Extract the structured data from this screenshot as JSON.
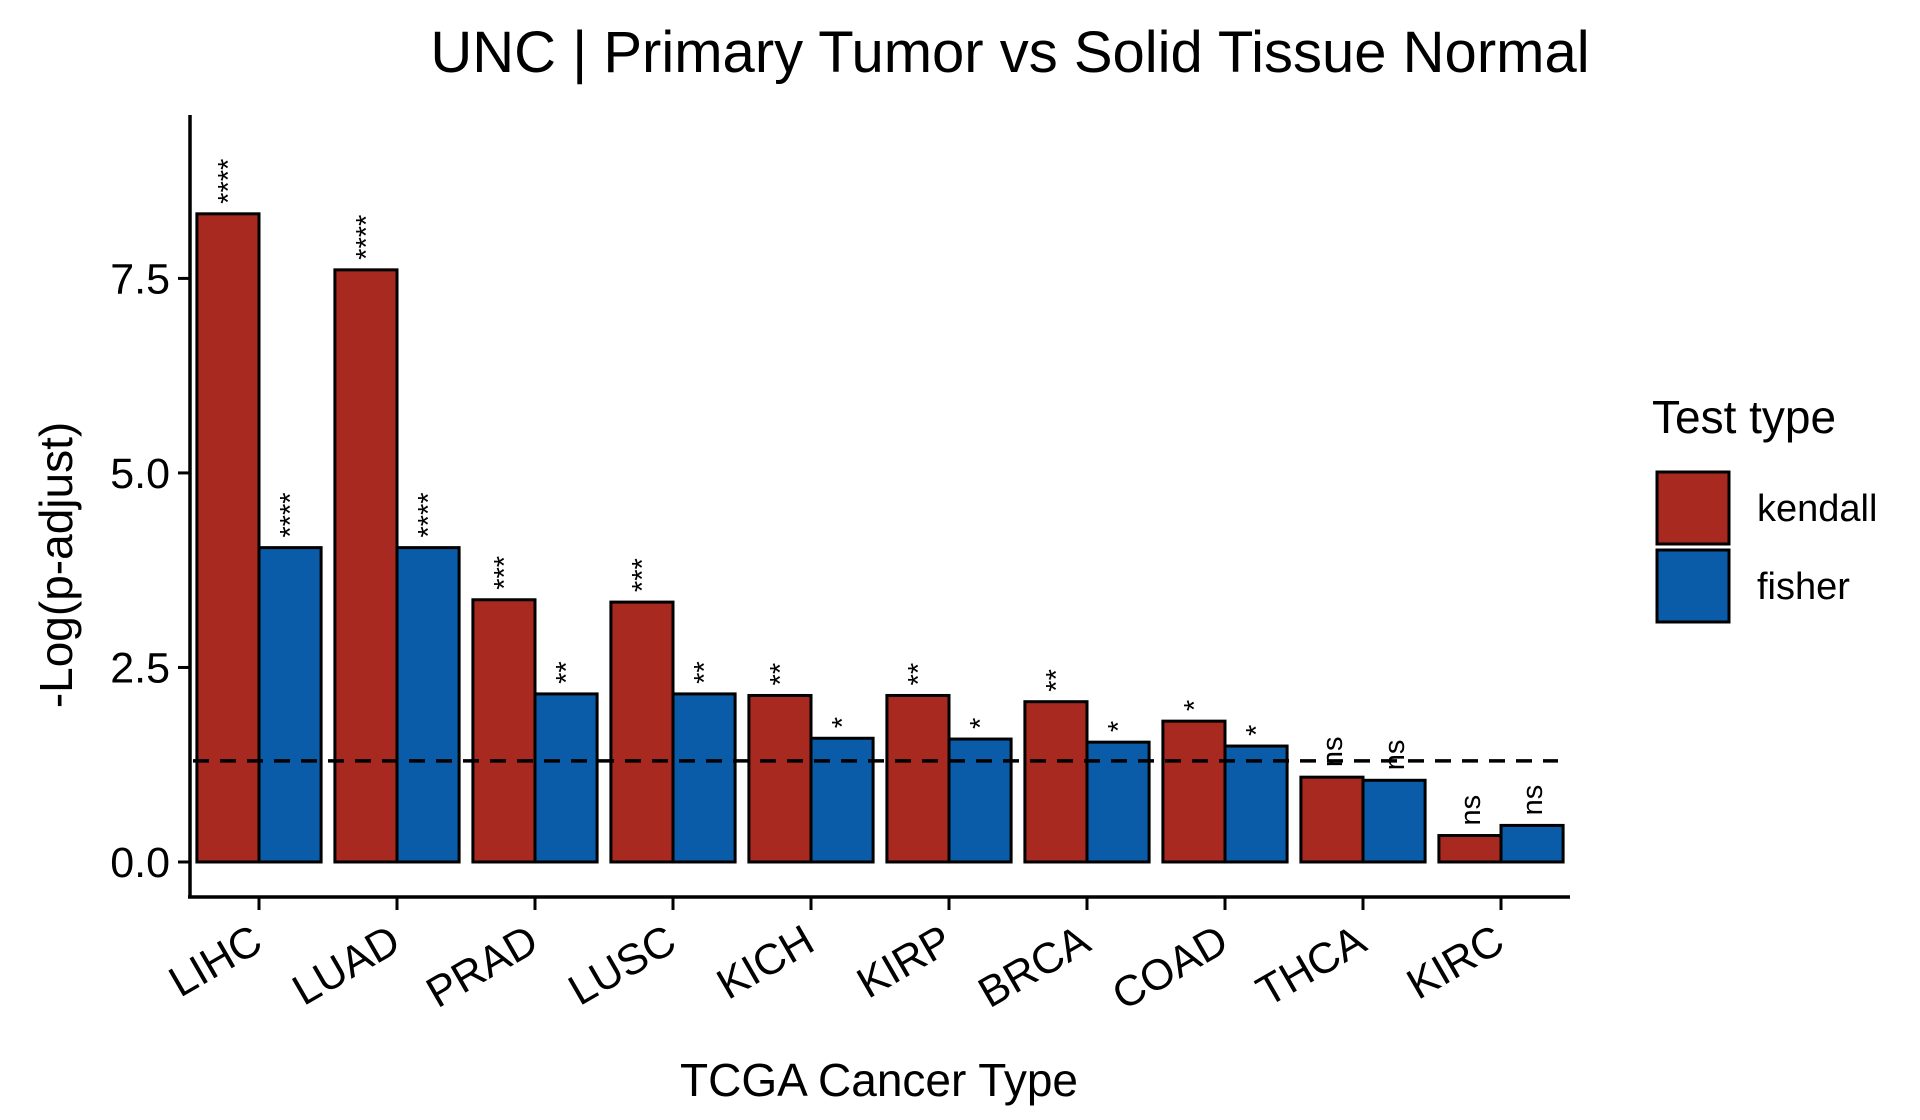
{
  "chart_data": {
    "type": "bar",
    "title": "UNC | Primary Tumor vs Solid Tissue Normal",
    "xlabel": "TCGA Cancer Type",
    "ylabel": "-Log(p-adjust)",
    "categories": [
      "LIHC",
      "LUAD",
      "PRAD",
      "LUSC",
      "KICH",
      "KIRP",
      "BRCA",
      "COAD",
      "THCA",
      "KIRC"
    ],
    "series": [
      {
        "name": "kendall",
        "color": "#A8291F",
        "values": [
          8.33,
          7.61,
          3.37,
          3.34,
          2.14,
          2.14,
          2.06,
          1.81,
          1.09,
          0.34
        ],
        "labels": [
          "****",
          "****",
          "***",
          "***",
          "**",
          "**",
          "**",
          "*",
          "ns",
          "ns"
        ]
      },
      {
        "name": "fisher",
        "color": "#0B5CA8",
        "values": [
          4.04,
          4.04,
          2.16,
          2.16,
          1.59,
          1.58,
          1.54,
          1.49,
          1.05,
          0.47
        ],
        "labels": [
          "****",
          "****",
          "**",
          "**",
          "*",
          "*",
          "*",
          "*",
          "ns",
          "ns"
        ]
      }
    ],
    "yticks": [
      0.0,
      2.5,
      5.0,
      7.5
    ],
    "ytick_labels": [
      "0.0",
      "2.5",
      "5.0",
      "7.5"
    ],
    "ylim": [
      -0.45,
      9.6
    ],
    "reference_line": 1.3,
    "legend": {
      "title": "Test type",
      "placement": "right"
    },
    "grid": false
  }
}
